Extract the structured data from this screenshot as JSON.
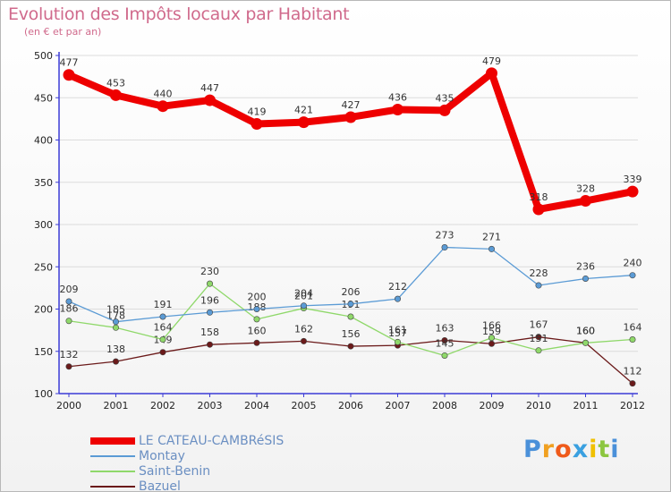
{
  "chart_data": {
    "type": "line",
    "title": "Evolution des Impôts locaux par Habitant",
    "subtitle": "(en € et par an)",
    "xlabel": "",
    "ylabel": "",
    "ylim": [
      100,
      500
    ],
    "yticks": [
      100,
      150,
      200,
      250,
      300,
      350,
      400,
      450,
      500
    ],
    "categories": [
      "2000",
      "2001",
      "2002",
      "2003",
      "2004",
      "2005",
      "2006",
      "2007",
      "2008",
      "2009",
      "2010",
      "2011",
      "2012"
    ],
    "series": [
      {
        "name": "LE CATEAU-CAMBRéSIS",
        "color": "#ee0000",
        "values": [
          477,
          453,
          440,
          447,
          419,
          421,
          427,
          436,
          435,
          479,
          318,
          328,
          339
        ]
      },
      {
        "name": "Montay",
        "color": "#5b9bd5",
        "values": [
          209,
          185,
          191,
          196,
          200,
          204,
          206,
          212,
          273,
          271,
          228,
          236,
          240
        ]
      },
      {
        "name": "Saint-Benin",
        "color": "#8fd86a",
        "values": [
          186,
          178,
          164,
          230,
          188,
          201,
          191,
          161,
          145,
          166,
          151,
          160,
          164
        ]
      },
      {
        "name": "Bazuel",
        "color": "#6b1a1a",
        "values": [
          132,
          138,
          149,
          158,
          160,
          162,
          156,
          157,
          163,
          159,
          167,
          160,
          112
        ]
      }
    ],
    "legend_position": "bottom-left"
  },
  "logo": {
    "letters": [
      "P",
      "r",
      "o",
      "x",
      "i",
      "t",
      "i"
    ],
    "colors": [
      "#4a90d9",
      "#f0a020",
      "#ef5a1a",
      "#3aa0e0",
      "#f0c000",
      "#8cc63f",
      "#4a90d9"
    ]
  }
}
